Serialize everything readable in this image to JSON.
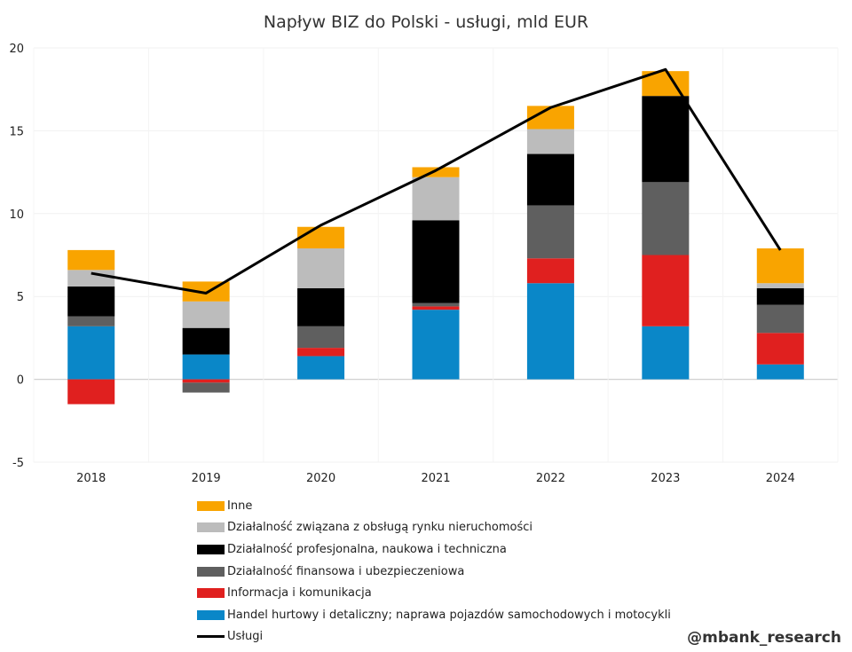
{
  "chart_data": {
    "type": "bar",
    "stacked": true,
    "title": "Napływ BIZ do Polski - usługi, mld EUR",
    "categories": [
      "2018",
      "2019",
      "2020",
      "2021",
      "2022",
      "2023",
      "2024"
    ],
    "ylim": [
      -5,
      20
    ],
    "yticks": [
      -5,
      0,
      5,
      10,
      15,
      20
    ],
    "grid": true,
    "series": [
      {
        "name": "Handel hurtowy i detaliczny; naprawa pojazdów samochodowych i motocykli",
        "color": "#0a87c8",
        "values": [
          3.2,
          1.5,
          1.4,
          4.2,
          5.8,
          3.2,
          0.9
        ]
      },
      {
        "name": "Informacja i komunikacja",
        "color": "#e0201f",
        "values": [
          -1.5,
          -0.2,
          0.5,
          0.2,
          1.5,
          4.3,
          1.9
        ]
      },
      {
        "name": "Działalność finansowa i ubezpieczeniowa",
        "color": "#5f5f5f",
        "values": [
          0.6,
          -0.6,
          1.3,
          0.2,
          3.2,
          4.4,
          1.7
        ]
      },
      {
        "name": "Działalność profesjonalna, naukowa i techniczna",
        "color": "#000000",
        "values": [
          1.8,
          1.6,
          2.3,
          5.0,
          3.1,
          5.2,
          1.0
        ]
      },
      {
        "name": "Działalność związana z obsługą rynku nieruchomości",
        "color": "#bcbcbc",
        "values": [
          1.0,
          1.6,
          2.4,
          2.6,
          1.5,
          0.0,
          0.3
        ]
      },
      {
        "name": "Inne",
        "color": "#f9a400",
        "values": [
          1.2,
          1.2,
          1.3,
          0.6,
          1.4,
          1.5,
          2.1
        ]
      }
    ],
    "line": {
      "name": "Usługi",
      "color": "#000000",
      "values": [
        6.4,
        5.2,
        9.3,
        12.6,
        16.4,
        18.7,
        7.8
      ]
    }
  },
  "legend_order": [
    {
      "label": "Inne",
      "color": "#f9a400",
      "kind": "box"
    },
    {
      "label": "Działalność związana z obsługą rynku nieruchomości",
      "color": "#bcbcbc",
      "kind": "box"
    },
    {
      "label": "Działalność profesjonalna, naukowa i techniczna",
      "color": "#000000",
      "kind": "box"
    },
    {
      "label": "Działalność finansowa i ubezpieczeniowa",
      "color": "#5f5f5f",
      "kind": "box"
    },
    {
      "label": "Informacja i komunikacja",
      "color": "#e0201f",
      "kind": "box"
    },
    {
      "label": "Handel hurtowy i detaliczny; naprawa pojazdów samochodowych i motocykli",
      "color": "#0a87c8",
      "kind": "box"
    },
    {
      "label": "Usługi",
      "color": "#000000",
      "kind": "line"
    }
  ],
  "watermark": "@mbank_research"
}
